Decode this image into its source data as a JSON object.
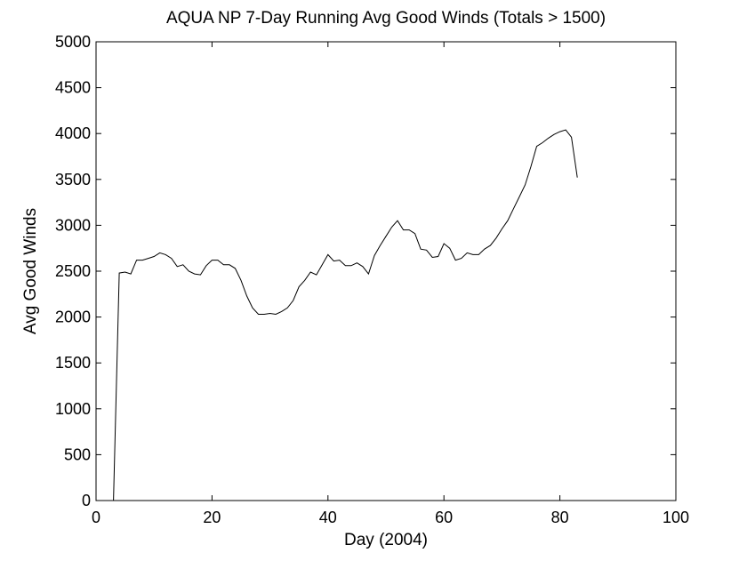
{
  "chart_data": {
    "type": "line",
    "title": "AQUA NP 7-Day Running Avg Good Winds (Totals > 1500)",
    "xlabel": "Day (2004)",
    "ylabel": "Avg Good Winds",
    "xlim": [
      0,
      100
    ],
    "ylim": [
      0,
      5000
    ],
    "x_ticks": [
      0,
      20,
      40,
      60,
      80,
      100
    ],
    "y_ticks": [
      0,
      500,
      1000,
      1500,
      2000,
      2500,
      3000,
      3500,
      4000,
      4500,
      5000
    ],
    "grid": false,
    "legend": "none",
    "line_color": "#000000",
    "series": [
      {
        "x": [
          3,
          4,
          5,
          6,
          7,
          8,
          9,
          10,
          11,
          12,
          13,
          14,
          15,
          16,
          17,
          18,
          19,
          20,
          21,
          22,
          23,
          24,
          25,
          26,
          27,
          28,
          29,
          30,
          31,
          32,
          33,
          34,
          35,
          36,
          37,
          38,
          39,
          40,
          41,
          42,
          43,
          44,
          45,
          46,
          47,
          48,
          49,
          50,
          51,
          52,
          53,
          54,
          55,
          56,
          57,
          58,
          59,
          60,
          61,
          62,
          63,
          64,
          65,
          66,
          67,
          68,
          69,
          70,
          71,
          72,
          73,
          74,
          75,
          76,
          77,
          78,
          79,
          80,
          81,
          82,
          83
        ],
        "y": [
          0,
          2480,
          2490,
          2470,
          2620,
          2620,
          2640,
          2660,
          2700,
          2680,
          2640,
          2550,
          2570,
          2500,
          2470,
          2460,
          2560,
          2620,
          2620,
          2570,
          2570,
          2530,
          2400,
          2230,
          2100,
          2030,
          2030,
          2040,
          2030,
          2060,
          2100,
          2180,
          2330,
          2400,
          2490,
          2460,
          2570,
          2680,
          2610,
          2620,
          2560,
          2560,
          2590,
          2550,
          2470,
          2670,
          2780,
          2880,
          2980,
          3050,
          2950,
          2950,
          2910,
          2740,
          2730,
          2650,
          2660,
          2800,
          2750,
          2620,
          2640,
          2700,
          2680,
          2680,
          2740,
          2780,
          2860,
          2960,
          3050,
          3180,
          3310,
          3440,
          3640,
          3860,
          3900,
          3950,
          3990,
          4020,
          4040,
          3960,
          3520
        ]
      }
    ]
  }
}
